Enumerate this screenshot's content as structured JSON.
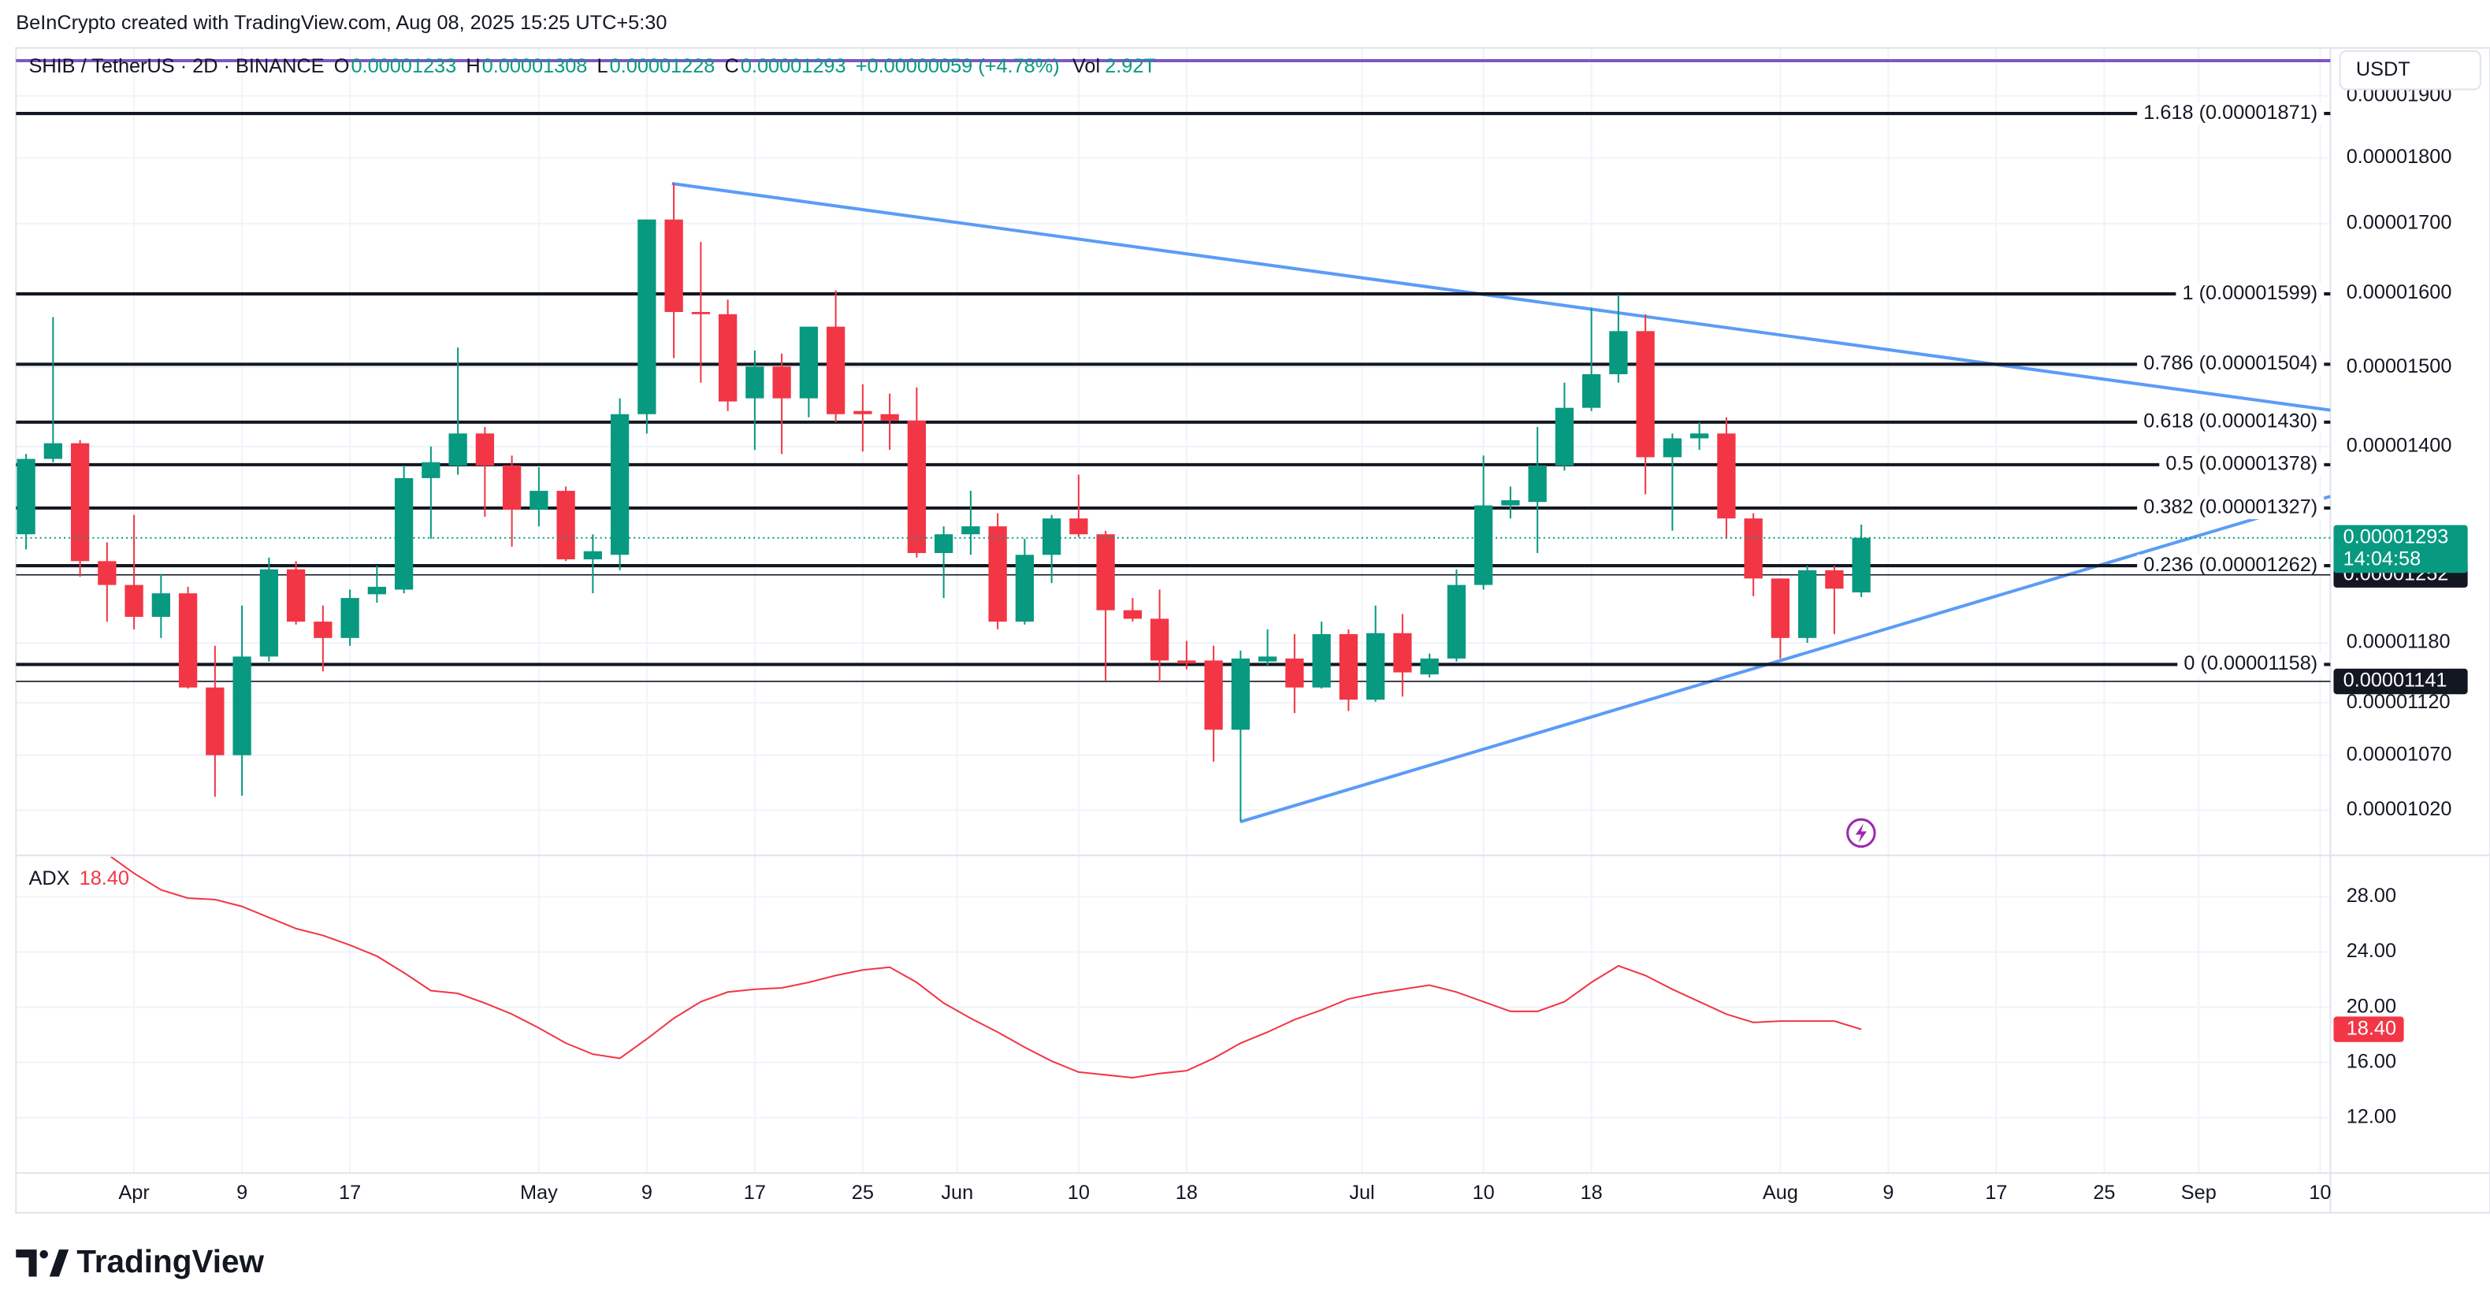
{
  "header": {
    "credit": "BeInCrypto created with TradingView.com, Aug 08, 2025 15:25 UTC+5:30"
  },
  "footer": {
    "brand": "TradingView"
  },
  "chart_data": [
    {
      "type": "candlestick",
      "symbol": "SHIB / TetherUS · 2D · BINANCE",
      "ohlc_keys": [
        "O",
        "H",
        "L",
        "C"
      ],
      "change": "+0.00000059 (+4.78%)",
      "volume_key": "Vol",
      "volume": "2.92T",
      "currency": "USDT",
      "countdown": "14:04:58",
      "up_color": "#089981",
      "down_color": "#f23645",
      "log_scale": true,
      "grid": true,
      "x": [
        83,
        85,
        87,
        89,
        91,
        93,
        95,
        97,
        99,
        101,
        103,
        105,
        107,
        109,
        111,
        113,
        115,
        117,
        119,
        121,
        123,
        125,
        127,
        129,
        131,
        133,
        135,
        137,
        139,
        141,
        143,
        145,
        147,
        149,
        151,
        153,
        155,
        157,
        159,
        161,
        163,
        165,
        167,
        169,
        171,
        173,
        175,
        177,
        179,
        181,
        183,
        185,
        187,
        189,
        191,
        193,
        195,
        197,
        199,
        201,
        203,
        205,
        207,
        209,
        211,
        213,
        215,
        217,
        219
      ],
      "series": {
        "open": [
          1.297e-05,
          1.385e-05,
          1.404e-05,
          1.267e-05,
          1.241e-05,
          1.207e-05,
          1.232e-05,
          1.135e-05,
          1.07e-05,
          1.166e-05,
          1.258e-05,
          1.202e-05,
          1.185e-05,
          1.231e-05,
          1.236e-05,
          1.362e-05,
          1.377e-05,
          1.416e-05,
          1.377e-05,
          1.325e-05,
          1.347e-05,
          1.269e-05,
          1.274e-05,
          1.44e-05,
          1.706e-05,
          1.574e-05,
          1.571e-05,
          1.46e-05,
          1.501e-05,
          1.46e-05,
          1.554e-05,
          1.444e-05,
          1.44e-05,
          1.432e-05,
          1.276e-05,
          1.297e-05,
          1.306e-05,
          1.202e-05,
          1.274e-05,
          1.315e-05,
          1.297e-05,
          1.214e-05,
          1.205e-05,
          1.162e-05,
          1.162e-05,
          1.094e-05,
          1.161e-05,
          1.164e-05,
          1.135e-05,
          1.189e-05,
          1.123e-05,
          1.19e-05,
          1.148e-05,
          1.164e-05,
          1.241e-05,
          1.33e-05,
          1.334e-05,
          1.377e-05,
          1.448e-05,
          1.491e-05,
          1.548e-05,
          1.387e-05,
          1.41e-05,
          1.416e-05,
          1.315e-05,
          1.248e-05,
          1.185e-05,
          1.257e-05,
          1.233e-05
        ],
        "high": [
          1.391e-05,
          1.567e-05,
          1.408e-05,
          1.288e-05,
          1.319e-05,
          1.253e-05,
          1.239e-05,
          1.177e-05,
          1.219e-05,
          1.271e-05,
          1.267e-05,
          1.219e-05,
          1.236e-05,
          1.262e-05,
          1.377e-05,
          1.4e-05,
          1.526e-05,
          1.424e-05,
          1.389e-05,
          1.375e-05,
          1.352e-05,
          1.297e-05,
          1.46e-05,
          1.706e-05,
          1.761e-05,
          1.673e-05,
          1.591e-05,
          1.522e-05,
          1.518e-05,
          1.554e-05,
          1.604e-05,
          1.478e-05,
          1.466e-05,
          1.474e-05,
          1.306e-05,
          1.347e-05,
          1.321e-05,
          1.292e-05,
          1.319e-05,
          1.366e-05,
          1.301e-05,
          1.227e-05,
          1.236e-05,
          1.182e-05,
          1.177e-05,
          1.172e-05,
          1.194e-05,
          1.189e-05,
          1.202e-05,
          1.194e-05,
          1.219e-05,
          1.21e-05,
          1.169e-05,
          1.258e-05,
          1.389e-05,
          1.352e-05,
          1.424e-05,
          1.48e-05,
          1.58e-05,
          1.598e-05,
          1.571e-05,
          1.416e-05,
          1.43e-05,
          1.436e-05,
          1.321e-05,
          1.248e-05,
          1.262e-05,
          1.262e-05,
          1.308e-05
        ],
        "low": [
          1.28e-05,
          1.381e-05,
          1.25e-05,
          1.202e-05,
          1.194e-05,
          1.185e-05,
          1.134e-05,
          1.032e-05,
          1.033e-05,
          1.161e-05,
          1.199e-05,
          1.151e-05,
          1.177e-05,
          1.222e-05,
          1.232e-05,
          1.292e-05,
          1.366e-05,
          1.317e-05,
          1.283e-05,
          1.306e-05,
          1.267e-05,
          1.232e-05,
          1.257e-05,
          1.416e-05,
          1.512e-05,
          1.48e-05,
          1.444e-05,
          1.396e-05,
          1.391e-05,
          1.436e-05,
          1.43e-05,
          1.394e-05,
          1.396e-05,
          1.271e-05,
          1.227e-05,
          1.274e-05,
          1.194e-05,
          1.199e-05,
          1.243e-05,
          1.294e-05,
          1.142e-05,
          1.202e-05,
          1.14e-05,
          1.153e-05,
          1.064e-05,
          1.01e-05,
          1.156e-05,
          1.11e-05,
          1.134e-05,
          1.112e-05,
          1.121e-05,
          1.126e-05,
          1.145e-05,
          1.161e-05,
          1.236e-05,
          1.315e-05,
          1.276e-05,
          1.371e-05,
          1.444e-05,
          1.48e-05,
          1.343e-05,
          1.301e-05,
          1.396e-05,
          1.292e-05,
          1.229e-05,
          1.164e-05,
          1.18e-05,
          1.189e-05,
          1.228e-05
        ],
        "close": [
          1.385e-05,
          1.404e-05,
          1.267e-05,
          1.241e-05,
          1.207e-05,
          1.232e-05,
          1.135e-05,
          1.07e-05,
          1.166e-05,
          1.258e-05,
          1.202e-05,
          1.185e-05,
          1.227e-05,
          1.239e-05,
          1.362e-05,
          1.381e-05,
          1.416e-05,
          1.377e-05,
          1.325e-05,
          1.347e-05,
          1.269e-05,
          1.278e-05,
          1.44e-05,
          1.706e-05,
          1.574e-05,
          1.571e-05,
          1.456e-05,
          1.501e-05,
          1.46e-05,
          1.554e-05,
          1.44e-05,
          1.44e-05,
          1.432e-05,
          1.276e-05,
          1.297e-05,
          1.306e-05,
          1.202e-05,
          1.274e-05,
          1.315e-05,
          1.297e-05,
          1.214e-05,
          1.205e-05,
          1.162e-05,
          1.159e-05,
          1.094e-05,
          1.164e-05,
          1.166e-05,
          1.135e-05,
          1.189e-05,
          1.123e-05,
          1.19e-05,
          1.15e-05,
          1.164e-05,
          1.241e-05,
          1.33e-05,
          1.336e-05,
          1.377e-05,
          1.448e-05,
          1.491e-05,
          1.548e-05,
          1.387e-05,
          1.41e-05,
          1.416e-05,
          1.315e-05,
          1.248e-05,
          1.185e-05,
          1.257e-05,
          1.237e-05,
          1.293e-05
        ]
      },
      "fib_levels": [
        {
          "label": "1.618 (0.00001871)",
          "value": 1.871e-05
        },
        {
          "label": "1 (0.00001599)",
          "value": 1.599e-05
        },
        {
          "label": "0.786 (0.00001504)",
          "value": 1.504e-05
        },
        {
          "label": "0.618 (0.00001430)",
          "value": 1.43e-05
        },
        {
          "label": "0.5 (0.00001378)",
          "value": 1.378e-05
        },
        {
          "label": "0.382 (0.00001327)",
          "value": 1.327e-05
        },
        {
          "label": "0.236 (0.00001262)",
          "value": 1.262e-05
        },
        {
          "label": "0 (0.00001158)",
          "value": 1.158e-05
        }
      ],
      "price_lines": [
        1.252e-05,
        1.141e-05
      ],
      "xlim": [
        82.25,
        253.76
      ],
      "xticks": [
        {
          "value": 91,
          "label": "Apr"
        },
        {
          "value": 99,
          "label": "9"
        },
        {
          "value": 107,
          "label": "17"
        },
        {
          "value": 121,
          "label": "May"
        },
        {
          "value": 129,
          "label": "9"
        },
        {
          "value": 137,
          "label": "17"
        },
        {
          "value": 145,
          "label": "25"
        },
        {
          "value": 152,
          "label": "Jun"
        },
        {
          "value": 161,
          "label": "10"
        },
        {
          "value": 169,
          "label": "18"
        },
        {
          "value": 182,
          "label": "Jul"
        },
        {
          "value": 191,
          "label": "10"
        },
        {
          "value": 199,
          "label": "18"
        },
        {
          "value": 213,
          "label": "Aug"
        },
        {
          "value": 221,
          "label": "9"
        },
        {
          "value": 229,
          "label": "17"
        },
        {
          "value": 237,
          "label": "25"
        },
        {
          "value": 244,
          "label": "Sep"
        },
        {
          "value": 253,
          "label": "10"
        }
      ],
      "ylim": [
        9.82e-06,
        1.981e-05
      ],
      "yticks": [
        {
          "value": 1.9e-05,
          "label": "0.00001900"
        },
        {
          "value": 1.8e-05,
          "label": "0.00001800"
        },
        {
          "value": 1.7e-05,
          "label": "0.00001700"
        },
        {
          "value": 1.6e-05,
          "label": "0.00001600"
        },
        {
          "value": 1.5e-05,
          "label": "0.00001500"
        },
        {
          "value": 1.4e-05,
          "label": "0.00001400"
        },
        {
          "value": 1.18e-05,
          "label": "0.00001180"
        },
        {
          "value": 1.12e-05,
          "label": "0.00001120"
        },
        {
          "value": 1.07e-05,
          "label": "0.00001070"
        },
        {
          "value": 1.02e-05,
          "label": "0.00001020"
        }
      ]
    },
    {
      "type": "line",
      "name": "ADX",
      "color": "#f23645",
      "current_label": "18.40",
      "grid": true,
      "values": [
        null,
        null,
        null,
        31.1,
        29.7,
        28.5,
        27.9,
        27.8,
        27.3,
        26.5,
        25.7,
        25.2,
        24.5,
        23.7,
        22.5,
        21.2,
        21.0,
        20.3,
        19.5,
        18.5,
        17.4,
        16.6,
        16.3,
        17.7,
        19.2,
        20.4,
        21.1,
        21.3,
        21.4,
        21.8,
        22.3,
        22.7,
        22.9,
        21.8,
        20.3,
        19.2,
        18.2,
        17.1,
        16.1,
        15.3,
        15.1,
        14.9,
        15.2,
        15.4,
        16.3,
        17.4,
        18.2,
        19.1,
        19.8,
        20.6,
        21.0,
        21.3,
        21.6,
        21.1,
        20.4,
        19.7,
        19.7,
        20.4,
        21.8,
        23.0,
        22.3,
        21.3,
        20.4,
        19.5,
        18.9,
        19.0,
        19.0,
        19.0,
        18.4
      ],
      "ylim": [
        8,
        31
      ],
      "yticks": [
        {
          "value": 28,
          "label": "28.00"
        },
        {
          "value": 24,
          "label": "24.00"
        },
        {
          "value": 20,
          "label": "20.00"
        },
        {
          "value": 16,
          "label": "16.00"
        },
        {
          "value": 12,
          "label": "12.00"
        }
      ]
    }
  ]
}
